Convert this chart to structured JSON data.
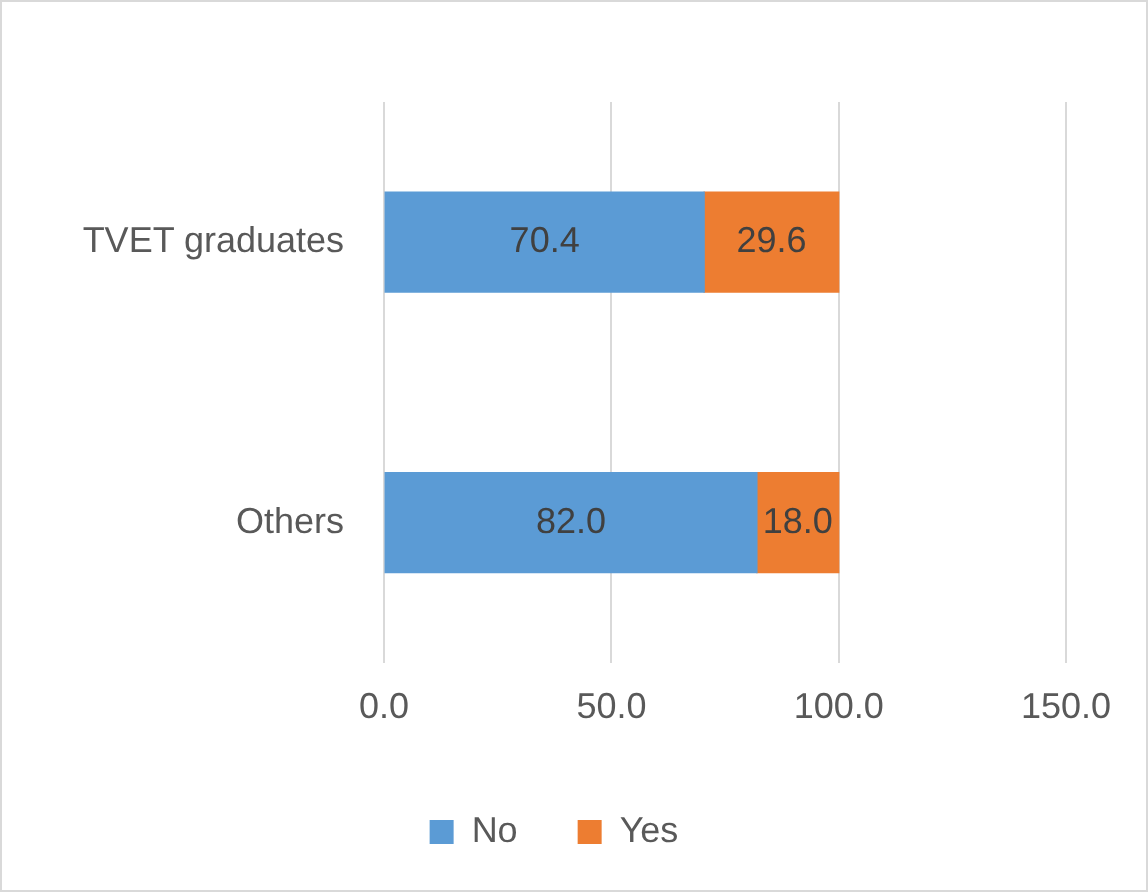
{
  "chart_data": {
    "type": "bar",
    "orientation": "horizontal",
    "stacked": true,
    "categories": [
      "TVET graduates",
      "Others"
    ],
    "series": [
      {
        "name": "No",
        "color": "#5b9bd5",
        "values": [
          70.4,
          82.0
        ],
        "value_labels": [
          "70.4",
          "82.0"
        ]
      },
      {
        "name": "Yes",
        "color": "#ed7d31",
        "values": [
          29.6,
          18.0
        ],
        "value_labels": [
          "29.6",
          "18.0"
        ]
      }
    ],
    "xlim": [
      0,
      150
    ],
    "xticks": [
      {
        "value": 0,
        "label": "0.0"
      },
      {
        "value": 50,
        "label": "50.0"
      },
      {
        "value": 100,
        "label": "100.0"
      },
      {
        "value": 150,
        "label": "150.0"
      }
    ],
    "grid": "x",
    "legend": "bottom"
  }
}
